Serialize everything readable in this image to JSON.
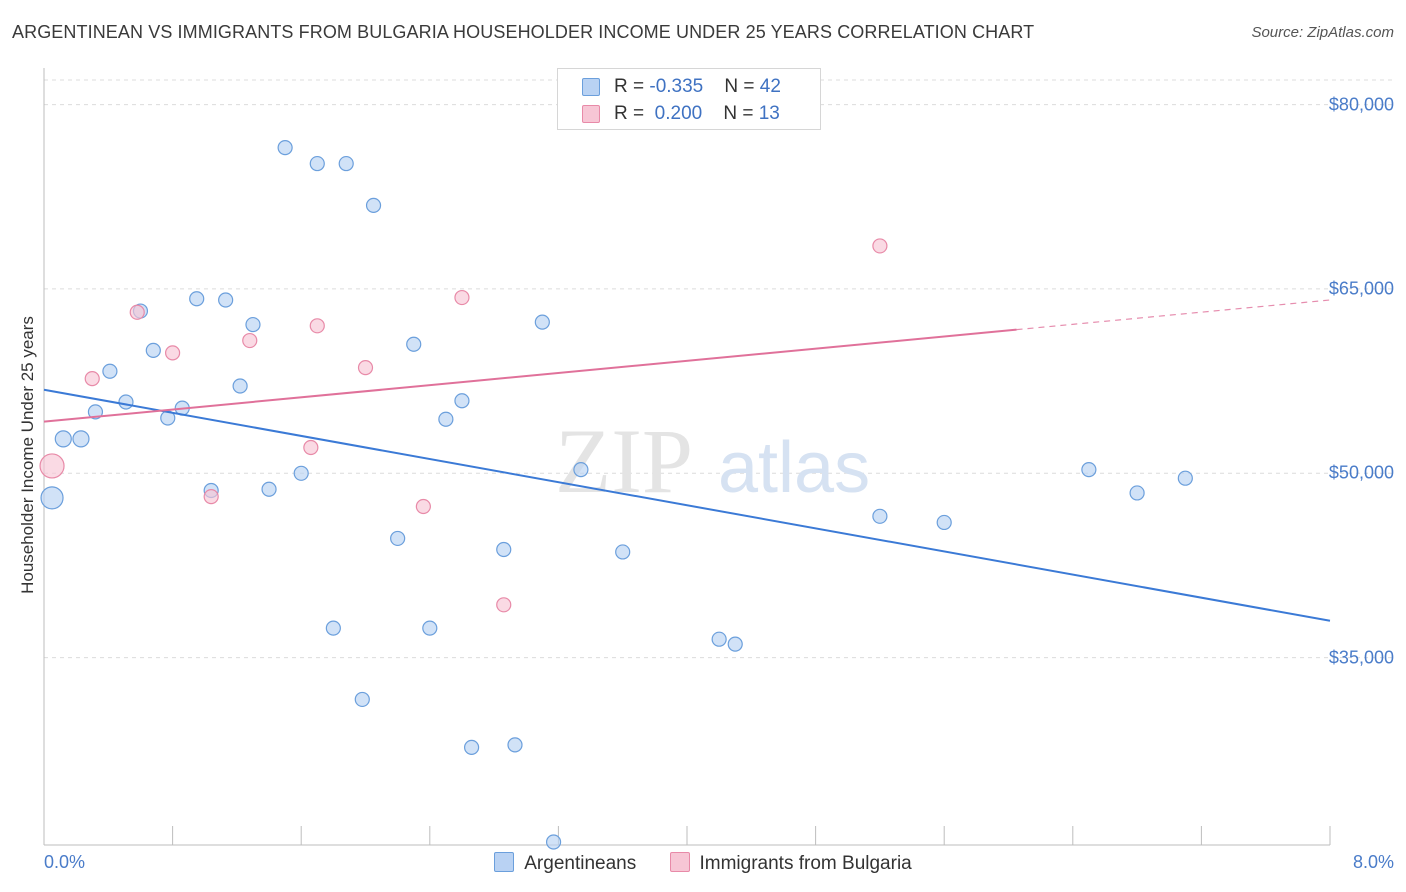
{
  "title": "ARGENTINEAN VS IMMIGRANTS FROM BULGARIA HOUSEHOLDER INCOME UNDER 25 YEARS CORRELATION CHART",
  "source": "Source: ZipAtlas.com",
  "watermark": {
    "zip": "ZIP",
    "atlas": "atlas"
  },
  "legend_top": [
    {
      "r_label": "R = ",
      "r_value": "-0.335",
      "n_label": "N = ",
      "n_value": "42"
    },
    {
      "r_label": "R = ",
      "r_value": " 0.200",
      "n_label": "N = ",
      "n_value": "13"
    }
  ],
  "chart_data": {
    "type": "scatter",
    "xlabel": "",
    "ylabel": "Householder Income Under 25 years",
    "xlim": [
      0,
      8
    ],
    "ylim": [
      20000,
      82000
    ],
    "x_tick_labels": [
      "0.0%",
      "8.0%"
    ],
    "y_ticks": [
      35000,
      50000,
      65000,
      80000
    ],
    "y_tick_labels": [
      "$35,000",
      "$50,000",
      "$65,000",
      "$80,000"
    ],
    "grid": "horizontal dashed",
    "legend_placement": "bottom",
    "series": [
      {
        "name": "Argentineans",
        "color": "#6b9fdc",
        "fill": "#b9d2f3",
        "points": [
          [
            0.05,
            48000,
            22
          ],
          [
            0.12,
            52800,
            16
          ],
          [
            0.23,
            52800,
            16
          ],
          [
            0.32,
            55000,
            14
          ],
          [
            0.41,
            58300,
            14
          ],
          [
            0.51,
            55800,
            14
          ],
          [
            0.6,
            63200,
            14
          ],
          [
            0.68,
            60000,
            14
          ],
          [
            0.77,
            54500,
            14
          ],
          [
            0.86,
            55300,
            14
          ],
          [
            0.95,
            64200,
            14
          ],
          [
            1.04,
            48600,
            14
          ],
          [
            1.13,
            64100,
            14
          ],
          [
            1.22,
            57100,
            14
          ],
          [
            1.3,
            62100,
            14
          ],
          [
            1.4,
            48700,
            14
          ],
          [
            1.5,
            76500,
            14
          ],
          [
            1.6,
            50000,
            14
          ],
          [
            1.7,
            75200,
            14
          ],
          [
            1.8,
            37400,
            14
          ],
          [
            1.88,
            75200,
            14
          ],
          [
            1.98,
            31600,
            14
          ],
          [
            2.05,
            71800,
            14
          ],
          [
            2.2,
            44700,
            14
          ],
          [
            2.3,
            60500,
            14
          ],
          [
            2.4,
            37400,
            14
          ],
          [
            2.5,
            54400,
            14
          ],
          [
            2.6,
            55900,
            14
          ],
          [
            2.66,
            27700,
            14
          ],
          [
            2.86,
            43800,
            14
          ],
          [
            2.93,
            27900,
            14
          ],
          [
            3.1,
            62300,
            14
          ],
          [
            3.17,
            20000,
            14
          ],
          [
            3.34,
            50300,
            14
          ],
          [
            3.6,
            43600,
            14
          ],
          [
            4.2,
            36500,
            14
          ],
          [
            4.3,
            36100,
            14
          ],
          [
            5.2,
            46500,
            14
          ],
          [
            5.6,
            46000,
            14
          ],
          [
            6.5,
            50300,
            14
          ],
          [
            6.8,
            48400,
            14
          ],
          [
            7.1,
            49600,
            14
          ]
        ]
      },
      {
        "name": "Immigrants from Bulgaria",
        "color": "#e88aa8",
        "fill": "#f7c6d5",
        "points": [
          [
            0.05,
            50600,
            24
          ],
          [
            0.3,
            57700,
            14
          ],
          [
            0.58,
            63100,
            14
          ],
          [
            0.8,
            59800,
            14
          ],
          [
            1.04,
            48100,
            14
          ],
          [
            1.28,
            60800,
            14
          ],
          [
            1.7,
            62000,
            14
          ],
          [
            1.66,
            52100,
            14
          ],
          [
            2.0,
            58600,
            14
          ],
          [
            2.36,
            47300,
            14
          ],
          [
            2.6,
            64300,
            14
          ],
          [
            2.86,
            39300,
            14
          ],
          [
            5.2,
            68500,
            14
          ]
        ]
      }
    ],
    "trend_lines": [
      {
        "series": "Argentineans",
        "color": "#3b7ad6",
        "x0": 0,
        "y0": 56800,
        "x1": 8,
        "y1": 38000,
        "dashed_from": null
      },
      {
        "series": "Immigrants from Bulgaria",
        "color": "#e0719a",
        "x0": 0,
        "y0": 54200,
        "x1": 8,
        "y1": 64100,
        "dashed_from": 6.05
      }
    ]
  }
}
